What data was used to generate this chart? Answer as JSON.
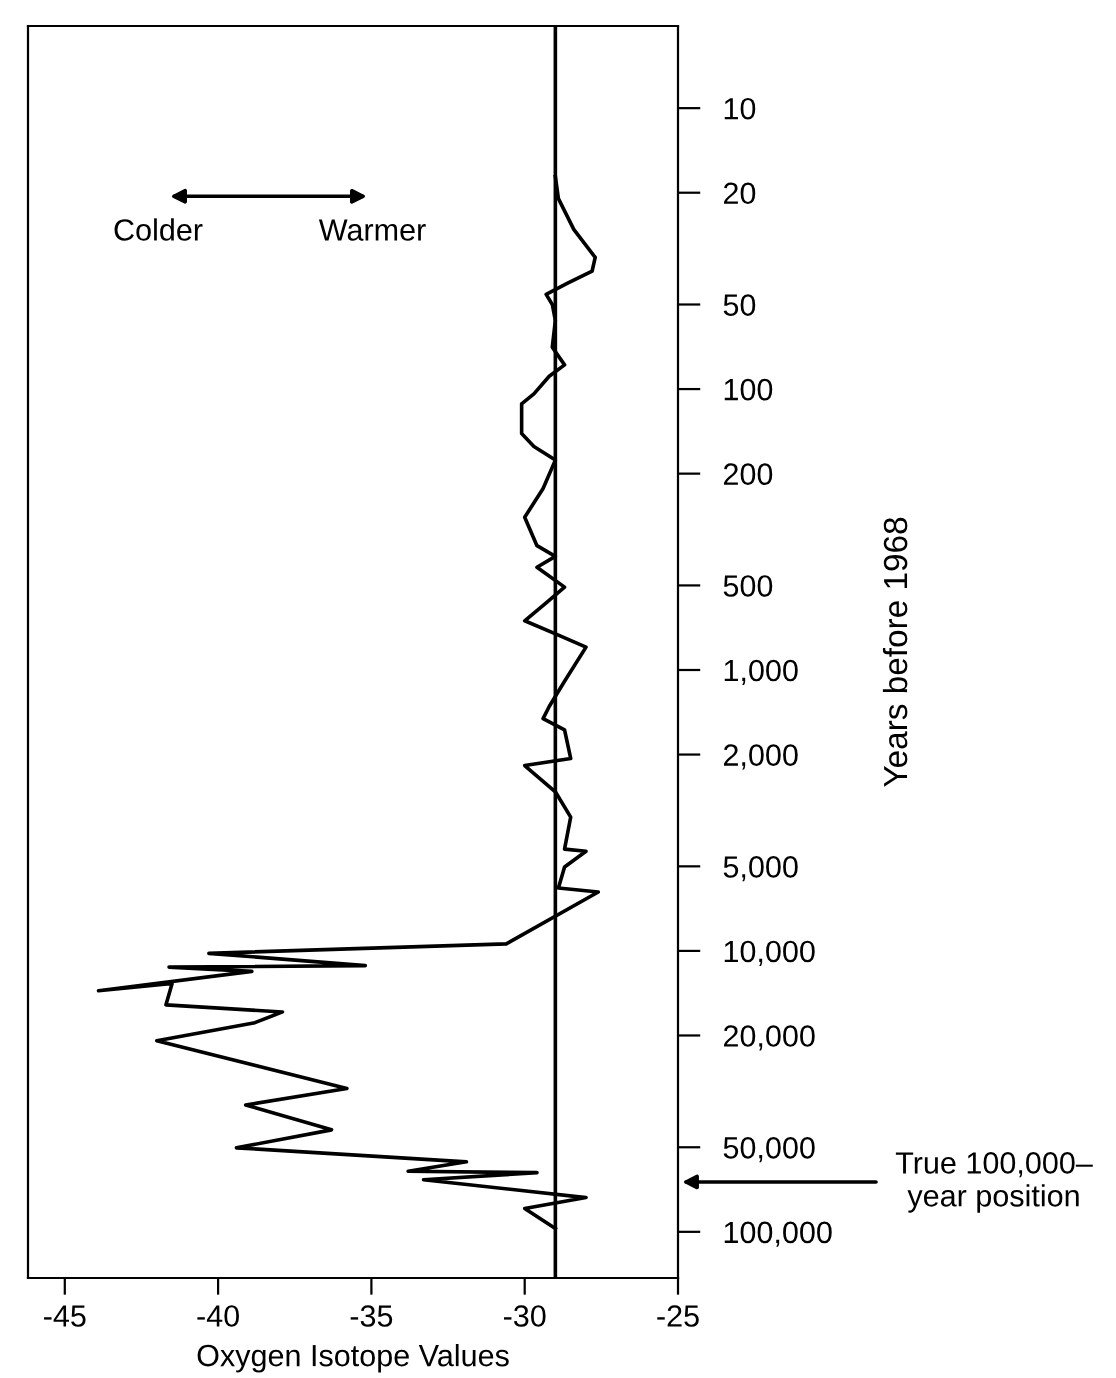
{
  "chart_data": {
    "type": "line",
    "xlabel": "Oxygen Isotope Values",
    "ylabel": "Years before 1968",
    "orientation": "horizontal",
    "log": "y",
    "grid": false,
    "marker": "none",
    "line_style": "solid",
    "xlim": [
      -46.2,
      -25
    ],
    "xticks": [
      -45,
      -40,
      -35,
      -30,
      -25
    ],
    "ylim": [
      146000,
      5.1
    ],
    "yticks": [
      10,
      20,
      50,
      100,
      200,
      500,
      {
        "value": 1000,
        "label": "1,000"
      },
      {
        "value": 2000,
        "label": "2,000"
      },
      {
        "value": 5000,
        "label": "5,000"
      },
      {
        "value": 10000,
        "label": "10,000"
      },
      {
        "value": 20000,
        "label": "20,000"
      },
      {
        "value": 50000,
        "label": "50,000"
      },
      {
        "value": 100000,
        "label": "100,000"
      }
    ],
    "series": [
      {
        "color": "#000000",
        "values": [
          -29.0,
          -28.9,
          -28.4,
          -27.7,
          -27.8,
          -28.6,
          -29.3,
          -29.1,
          -29.0,
          -29.1,
          -28.7,
          -29.2,
          -29.7,
          -30.1,
          -30.1,
          -29.7,
          -29.0,
          -29.4,
          -30.0,
          -29.6,
          -29.0,
          -29.6,
          -28.7,
          -29.3,
          -30.0,
          -28.9,
          -28.0,
          -28.7,
          -29.2,
          -29.4,
          -28.7,
          -28.5,
          -30.0,
          -29.0,
          -28.5,
          -28.7,
          -28.0,
          -28.7,
          -28.9,
          -27.6,
          -30.6,
          -40.3,
          -35.2,
          -41.6,
          -38.9,
          -43.9,
          -41.5,
          -41.7,
          -37.9,
          -38.8,
          -42.0,
          -35.8,
          -39.1,
          -36.3,
          -39.4,
          -31.9,
          -33.8,
          -29.6,
          -33.3,
          -28.0,
          -30.0,
          -29.0
        ],
        "x": [
          17.5,
          21,
          27,
          34,
          38,
          42,
          46,
          50,
          57,
          71,
          82,
          90,
          104,
          113,
          144,
          160,
          179,
          226,
          286,
          361,
          394,
          431,
          507,
          577,
          668,
          751,
          829,
          1097,
          1349,
          1490,
          1634,
          2065,
          2188,
          2714,
          3340,
          4343,
          4420,
          5030,
          5970,
          6170,
          9440,
          10200,
          11280,
          11420,
          11830,
          13860,
          13060,
          15560,
          16490,
          18010,
          20880,
          30900,
          35340,
          43350,
          50240,
          56340,
          60840,
          61550,
          65260,
          75530,
          82540,
          97300
        ]
      }
    ],
    "ref_lines": [
      {
        "axis": "x",
        "value": -29,
        "color": "#000000"
      }
    ],
    "annotations": [
      "Colder",
      "Warmer",
      "True 100,000–\nyear position"
    ]
  }
}
